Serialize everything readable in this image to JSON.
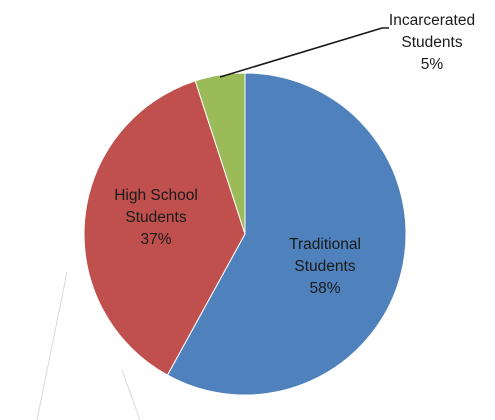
{
  "chart_data": {
    "type": "pie",
    "title": "",
    "start_angle_deg": 0,
    "direction": "clockwise",
    "slices": [
      {
        "label_lines": [
          "Traditional",
          "Students",
          "58%"
        ],
        "value": 58,
        "color": "#4f81bd"
      },
      {
        "label_lines": [
          "High School",
          "Students",
          "37%"
        ],
        "value": 37,
        "color": "#c0504d"
      },
      {
        "label_lines": [
          "Incarcerated",
          "Students",
          "5%"
        ],
        "value": 5,
        "color": "#9bbb59"
      }
    ],
    "legend": "none",
    "label_style": "data labels with leader line for small slice"
  }
}
